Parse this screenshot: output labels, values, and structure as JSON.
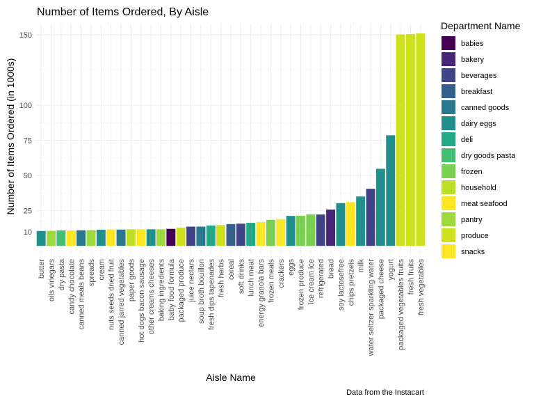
{
  "chart_data": {
    "type": "bar",
    "title": "Number of Items Ordered, By Aisle",
    "xlabel": "Aisle Name",
    "ylabel": "Number of Items Ordered (in 1000s)",
    "caption": "Data from the Instacart",
    "ylim": [
      0,
      157
    ],
    "y_ticks": [
      10,
      25,
      50,
      75,
      100,
      150
    ],
    "grid": true,
    "legend": {
      "title": "Department Name",
      "position": "right",
      "entries": [
        {
          "label": "babies",
          "color": "#440154"
        },
        {
          "label": "bakery",
          "color": "#482576"
        },
        {
          "label": "beverages",
          "color": "#414487"
        },
        {
          "label": "breakfast",
          "color": "#35608D"
        },
        {
          "label": "canned goods",
          "color": "#2A788E"
        },
        {
          "label": "dairy eggs",
          "color": "#21908C"
        },
        {
          "label": "deli",
          "color": "#22A884"
        },
        {
          "label": "dry goods pasta",
          "color": "#43BF71"
        },
        {
          "label": "frozen",
          "color": "#7AD151"
        },
        {
          "label": "household",
          "color": "#BBDF27"
        },
        {
          "label": "meat seafood",
          "color": "#FDE725"
        },
        {
          "label": "pantry",
          "color": "#9BD93C"
        },
        {
          "label": "produce",
          "color": "#CDE11D"
        },
        {
          "label": "snacks",
          "color": "#FDE725"
        }
      ]
    },
    "categories": [
      "butter",
      "oils vinegars",
      "dry pasta",
      "candy chocolate",
      "canned meals beans",
      "spreads",
      "cream",
      "nuts seeds dried fruit",
      "canned jarred vegetables",
      "paper goods",
      "hot dogs bacon sausage",
      "other creams cheeses",
      "baking ingredients",
      "baby food formula",
      "packaged produce",
      "juice nectars",
      "soup broth bouillon",
      "fresh dips tapenades",
      "fresh herbs",
      "cereal",
      "soft drinks",
      "lunch meat",
      "energy granola bars",
      "frozen meals",
      "crackers",
      "eggs",
      "frozen produce",
      "ice cream ice",
      "refrigerated",
      "bread",
      "soy lactosefree",
      "chips pretzels",
      "milk",
      "water seltzer sparkling water",
      "packaged cheese",
      "yogurt",
      "packaged vegetables fruits",
      "fresh fruits",
      "fresh vegetables"
    ],
    "values": [
      10.6,
      10.7,
      11.0,
      11.0,
      11.1,
      11.2,
      11.5,
      11.6,
      11.6,
      11.8,
      11.8,
      11.8,
      11.8,
      12.1,
      13.0,
      13.7,
      13.7,
      14.5,
      14.8,
      15.5,
      15.8,
      16.4,
      17.0,
      18.5,
      19.0,
      21.3,
      21.4,
      22.3,
      22.3,
      25.8,
      30.4,
      31.1,
      35.1,
      40.6,
      54.8,
      78.6,
      150.2,
      150.5,
      151.0
    ],
    "department": [
      "dairy eggs",
      "pantry",
      "dry goods pasta",
      "snacks",
      "canned goods",
      "pantry",
      "dairy eggs",
      "snacks",
      "canned goods",
      "household",
      "meat seafood",
      "dairy eggs",
      "pantry",
      "babies",
      "produce",
      "beverages",
      "canned goods",
      "deli",
      "produce",
      "breakfast",
      "beverages",
      "deli",
      "snacks",
      "frozen",
      "snacks",
      "dairy eggs",
      "frozen",
      "frozen",
      "beverages",
      "bakery",
      "dairy eggs",
      "snacks",
      "dairy eggs",
      "beverages",
      "dairy eggs",
      "dairy eggs",
      "produce",
      "produce",
      "produce"
    ]
  }
}
